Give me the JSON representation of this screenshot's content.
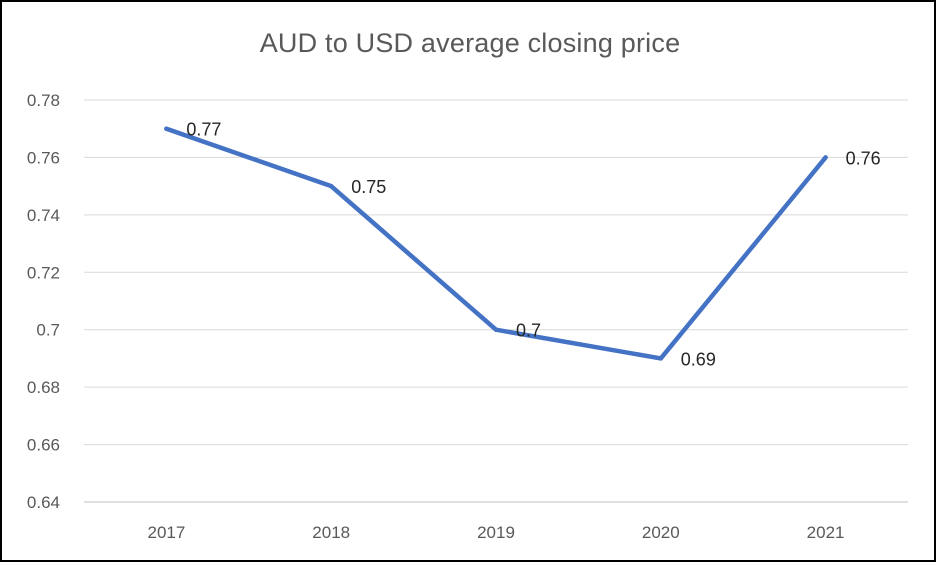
{
  "chart_data": {
    "type": "line",
    "title": "AUD to USD average closing price",
    "xlabel": "",
    "ylabel": "",
    "categories": [
      "2017",
      "2018",
      "2019",
      "2020",
      "2021"
    ],
    "series": [
      {
        "values": [
          0.77,
          0.75,
          0.7,
          0.69,
          0.76
        ],
        "labels": [
          "0.77",
          "0.75",
          "0.7",
          "0.69",
          "0.76"
        ],
        "color": "#4472C4"
      }
    ],
    "ylim": [
      0.64,
      0.78
    ],
    "yticks": [
      "0.64",
      "0.66",
      "0.68",
      "0.7",
      "0.72",
      "0.74",
      "0.76",
      "0.78"
    ],
    "grid": true,
    "legend": "none",
    "colors": {
      "line": "#4472C4",
      "grid": "#d9d9d9",
      "text": "#595959"
    }
  }
}
